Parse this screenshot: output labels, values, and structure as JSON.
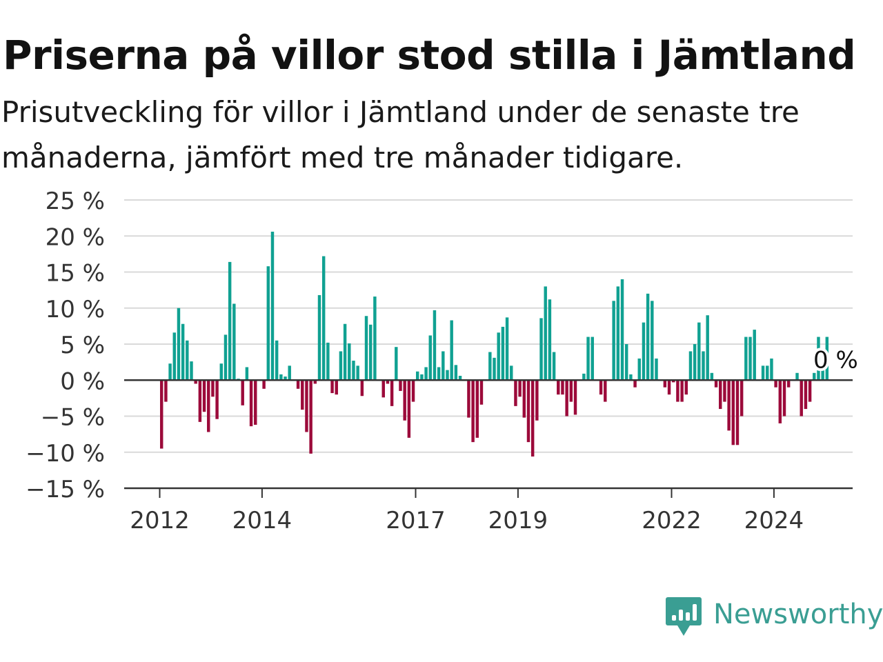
{
  "header": {
    "title": "Priserna på villor stod stilla i Jämtland",
    "subtitle": "Prisutveckling för villor i Jämtland under de senaste tre månaderna, jämfört med tre månader tidigare."
  },
  "brand": {
    "name": "Newsworthy",
    "icon": "newsworthy-logo-icon",
    "color": "#3a9e93"
  },
  "colors": {
    "positive": "#10a192",
    "negative": "#9c0a3a",
    "grid": "#d9d9d9",
    "baseline": "#333333"
  },
  "chart_data": {
    "type": "bar",
    "title": "Priserna på villor stod stilla i Jämtland",
    "subtitle": "Prisutveckling för villor i Jämtland under de senaste tre månaderna, jämfört med tre månader tidigare.",
    "xlabel": "",
    "ylabel": "",
    "ylim": [
      -15,
      25
    ],
    "yticks": [
      25,
      20,
      15,
      10,
      5,
      0,
      -5,
      -10,
      -15
    ],
    "ytick_labels": [
      "25 %",
      "20 %",
      "15 %",
      "10 %",
      "5 %",
      "0 %",
      "−5 %",
      "−10 %",
      "−15 %"
    ],
    "xticks": [
      2012,
      2014,
      2017,
      2019,
      2022,
      2024
    ],
    "xtick_labels": [
      "2012",
      "2014",
      "2017",
      "2019",
      "2022",
      "2024"
    ],
    "grid": true,
    "start": "2012-01",
    "frequency": "monthly",
    "unit": "%",
    "end_label": "0 %",
    "values": [
      -9.5,
      -3,
      2.3,
      6.6,
      10,
      7.8,
      5.5,
      2.6,
      -0.5,
      -5.8,
      -4.4,
      -7.2,
      -2.3,
      -5.4,
      2.3,
      6.3,
      16.4,
      10.6,
      0.2,
      -3.5,
      1.8,
      -6.4,
      -6.2,
      0,
      -1.2,
      15.8,
      20.6,
      5.5,
      0.8,
      0.5,
      2.0,
      0,
      -1.2,
      -4.1,
      -7.2,
      -10.2,
      -0.5,
      11.8,
      17.2,
      5.2,
      -1.8,
      -2.0,
      4.0,
      7.8,
      5.1,
      2.7,
      2.0,
      -2.2,
      8.9,
      7.7,
      11.6,
      0,
      -2.4,
      -0.5,
      -3.6,
      4.6,
      -1.5,
      -5.6,
      -8.0,
      -3.0,
      1.2,
      0.8,
      1.8,
      6.2,
      9.7,
      1.8,
      4.0,
      1.4,
      8.3,
      2.1,
      0.6,
      0,
      -5.2,
      -8.6,
      -8.0,
      -3.4,
      0,
      3.9,
      3.1,
      6.6,
      7.4,
      8.7,
      2.0,
      -3.6,
      -2.3,
      -5.2,
      -8.6,
      -10.6,
      -5.6,
      8.6,
      13.0,
      11.2,
      3.9,
      -2.0,
      -2.0,
      -5.0,
      -3.0,
      -4.8,
      0,
      0.9,
      6.0,
      6.0,
      0,
      -2.0,
      -3.0,
      0,
      11.0,
      13.0,
      14.0,
      5.0,
      0.8,
      -1.0,
      3.0,
      8.0,
      12.0,
      11.0,
      3.0,
      0,
      -1.0,
      -2.0,
      -0.3,
      -3.0,
      -3.0,
      -2.0,
      4.0,
      5.0,
      8.0,
      4.0,
      9.0,
      1.0,
      -1.0,
      -4.0,
      -3.0,
      -7.0,
      -9.0,
      -9.0,
      -5.0,
      6.0,
      6.0,
      7.0,
      0,
      2.0,
      2.0,
      3.0,
      -1.0,
      -6.0,
      -5.0,
      -1.0,
      0,
      1.0,
      -5.0,
      -4.0,
      -3.0,
      1.0,
      6.0,
      1.5,
      6.0,
      0
    ]
  }
}
